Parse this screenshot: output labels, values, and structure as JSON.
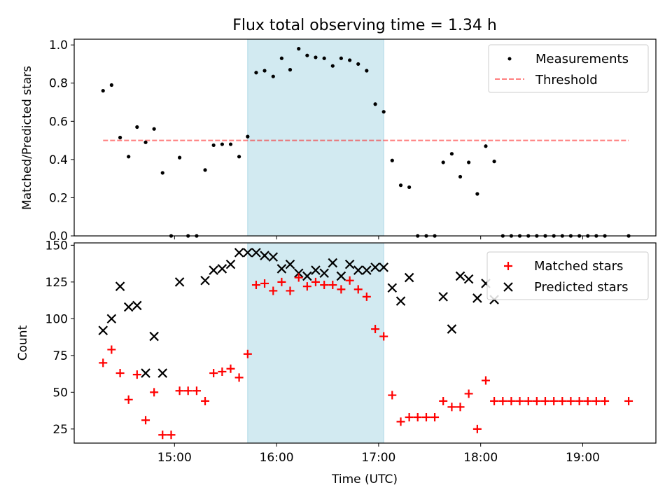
{
  "chart_data": {
    "title": "Flux total observing time = 1.34 h",
    "xlabel": "Time (UTC)",
    "x_unit": "hours (UTC)",
    "xlim": [
      14.017,
      19.717
    ],
    "xtick_values": [
      15,
      16,
      17,
      18,
      19
    ],
    "xtick_labels": [
      "15:00",
      "16:00",
      "17:00",
      "18:00",
      "19:00"
    ],
    "highlight_span": [
      15.717,
      17.05
    ],
    "colors": {
      "span": "#add8e6",
      "threshold": "#ff0000",
      "matched": "#ff0000",
      "predicted": "#000000",
      "measurement": "#000000"
    },
    "panels": [
      {
        "type": "scatter",
        "ylabel": "Matched/Predicted stars",
        "ylim": [
          0.0,
          1.03
        ],
        "yticks": [
          "0.0",
          "0.2",
          "0.4",
          "0.6",
          "0.8",
          "1.0"
        ],
        "ytick_values": [
          0.0,
          0.2,
          0.4,
          0.6,
          0.8,
          1.0
        ],
        "legend": [
          "Measurements",
          "Threshold"
        ],
        "threshold": {
          "x": [
            14.3,
            19.45
          ],
          "y": 0.5
        },
        "series": [
          {
            "name": "Measurements",
            "x": [
              14.3,
              14.383,
              14.467,
              14.55,
              14.633,
              14.717,
              14.8,
              14.883,
              14.967,
              15.05,
              15.133,
              15.217,
              15.3,
              15.383,
              15.467,
              15.55,
              15.633,
              15.717,
              15.8,
              15.883,
              15.967,
              16.05,
              16.133,
              16.217,
              16.3,
              16.383,
              16.467,
              16.55,
              16.633,
              16.717,
              16.8,
              16.883,
              16.967,
              17.05,
              17.133,
              17.217,
              17.3,
              17.383,
              17.467,
              17.55,
              17.633,
              17.717,
              17.8,
              17.883,
              17.967,
              18.05,
              18.133,
              18.217,
              18.3,
              18.383,
              18.467,
              18.55,
              18.633,
              18.717,
              18.8,
              18.883,
              18.967,
              19.05,
              19.133,
              19.217,
              19.45
            ],
            "y": [
              0.76,
              0.79,
              0.515,
              0.415,
              0.57,
              0.49,
              0.56,
              0.33,
              0.0,
              0.41,
              0.0,
              0.0,
              0.345,
              0.475,
              0.48,
              0.48,
              0.415,
              0.52,
              0.855,
              0.865,
              0.835,
              0.93,
              0.87,
              0.98,
              0.945,
              0.935,
              0.93,
              0.89,
              0.93,
              0.92,
              0.9,
              0.865,
              0.69,
              0.65,
              0.395,
              0.265,
              0.255,
              0.0,
              0.0,
              0.0,
              0.385,
              0.43,
              0.31,
              0.385,
              0.22,
              0.47,
              0.39,
              0.0,
              0.0,
              0.0,
              0.0,
              0.0,
              0.0,
              0.0,
              0.0,
              0.0,
              0.0,
              0.0,
              0.0,
              0.0,
              0.0
            ]
          }
        ]
      },
      {
        "type": "scatter",
        "ylabel": "Count",
        "ylim": [
          15.4,
          151.6
        ],
        "yticks": [
          "25",
          "50",
          "75",
          "100",
          "125",
          "150"
        ],
        "ytick_values": [
          25,
          50,
          75,
          100,
          125,
          150
        ],
        "legend": [
          "Matched stars",
          "Predicted stars"
        ],
        "series": [
          {
            "name": "Matched stars",
            "marker": "plus",
            "x": [
              14.3,
              14.383,
              14.467,
              14.55,
              14.633,
              14.717,
              14.8,
              14.883,
              14.967,
              15.05,
              15.133,
              15.217,
              15.3,
              15.383,
              15.467,
              15.55,
              15.633,
              15.717,
              15.8,
              15.883,
              15.967,
              16.05,
              16.133,
              16.217,
              16.3,
              16.383,
              16.467,
              16.55,
              16.633,
              16.717,
              16.8,
              16.883,
              16.967,
              17.05,
              17.133,
              17.217,
              17.3,
              17.383,
              17.467,
              17.55,
              17.633,
              17.717,
              17.8,
              17.883,
              17.967,
              18.05,
              18.133,
              18.217,
              18.3,
              18.383,
              18.467,
              18.55,
              18.633,
              18.717,
              18.8,
              18.883,
              18.967,
              19.05,
              19.133,
              19.217,
              19.45
            ],
            "y": [
              70,
              79,
              63,
              45,
              62,
              31,
              50,
              21,
              21,
              51,
              51,
              51,
              44,
              63,
              64,
              66,
              60,
              76,
              123,
              124,
              119,
              125,
              119,
              128,
              122,
              125,
              123,
              123,
              120,
              126,
              120,
              115,
              93,
              88,
              48,
              30,
              33,
              33,
              33,
              33,
              44,
              40,
              40,
              49,
              25,
              58,
              44,
              44,
              44,
              44,
              44,
              44,
              44,
              44,
              44,
              44,
              44,
              44,
              44,
              44,
              44
            ]
          },
          {
            "name": "Predicted stars",
            "marker": "x",
            "x": [
              14.3,
              14.383,
              14.467,
              14.55,
              14.633,
              14.717,
              14.8,
              14.883,
              15.05,
              15.3,
              15.383,
              15.467,
              15.55,
              15.633,
              15.717,
              15.8,
              15.883,
              15.967,
              16.05,
              16.133,
              16.217,
              16.3,
              16.383,
              16.467,
              16.55,
              16.633,
              16.717,
              16.8,
              16.883,
              16.967,
              17.05,
              17.133,
              17.217,
              17.3,
              17.633,
              17.717,
              17.8,
              17.883,
              17.967,
              18.05,
              18.133
            ],
            "y": [
              92,
              100,
              122,
              108,
              109,
              63,
              88,
              63,
              125,
              126,
              133,
              134,
              137,
              145,
              145,
              145,
              143,
              142,
              134,
              137,
              131,
              129,
              133,
              131,
              138,
              129,
              137,
              133,
              133,
              135,
              135,
              121,
              112,
              128,
              115,
              93,
              129,
              127,
              114,
              124,
              113
            ]
          }
        ]
      }
    ]
  }
}
